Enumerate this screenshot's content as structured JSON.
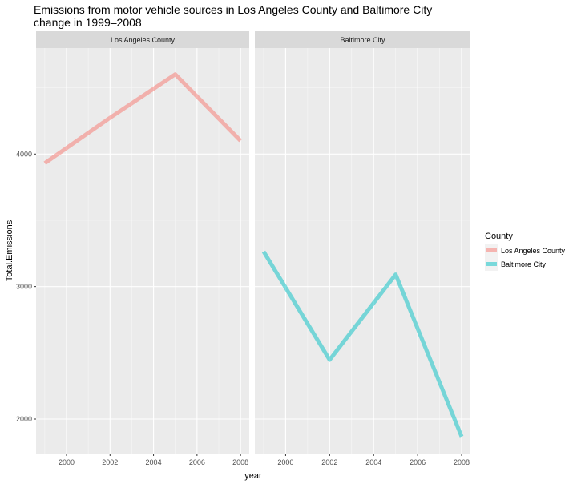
{
  "chart_data": {
    "type": "line",
    "title": "Emissions from motor vehicle sources in Los Angeles County and Baltimore City change in 1999–2008",
    "title_lines": [
      "Emissions from motor vehicle sources in Los Angeles County and Baltimore City",
      "change in 1999–2008"
    ],
    "xlabel": "year",
    "ylabel": "Total.Emissions",
    "x_ticks": [
      2000,
      2002,
      2004,
      2006,
      2008
    ],
    "y_ticks": [
      2000,
      3000,
      4000
    ],
    "xlim": [
      1998.6,
      2008.4
    ],
    "ylim": [
      1740,
      4800
    ],
    "grid": true,
    "legend": {
      "title": "County",
      "position": "right",
      "entries": [
        "Los Angeles County",
        "Baltimore City"
      ]
    },
    "panels": [
      "Los Angeles County",
      "Baltimore City"
    ],
    "series": [
      {
        "name": "Los Angeles County",
        "panel": 0,
        "color": "#F8766D",
        "x": [
          1999,
          2002,
          2005,
          2008
        ],
        "y": [
          3931,
          4274,
          4602,
          4101
        ]
      },
      {
        "name": "Baltimore City",
        "panel": 1,
        "color": "#00BFC4",
        "x": [
          1999,
          2002,
          2005,
          2008
        ],
        "y": [
          3264,
          2447,
          3091,
          1868
        ]
      }
    ]
  }
}
